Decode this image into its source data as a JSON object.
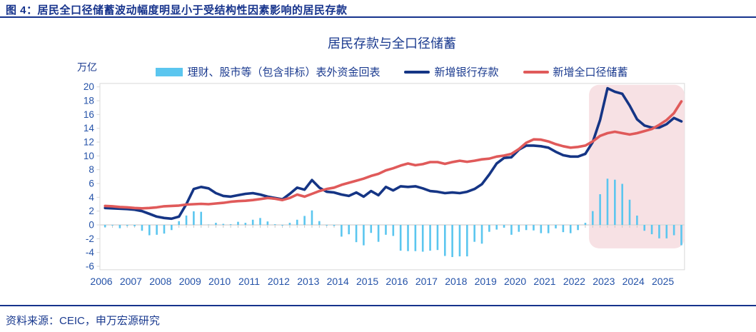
{
  "figure": {
    "title": "图 4：居民全口径储蓄波动幅度明显小于受结构性因素影响的居民存款",
    "source": "资料来源：CEIC，申万宏源研究"
  },
  "colors": {
    "title_blue": "#16338c",
    "axis_label_blue": "#2452a8",
    "axis_gray": "#d9d9d9",
    "tick_gray": "#c9c9c9",
    "bar_cyan": "#5bc6ef",
    "deposits_navy": "#153585",
    "savings_red": "#e05a5a",
    "highlight_pink": "#f7e1e4"
  },
  "chart_data": {
    "type": "bar+line combo",
    "title": "居民存款与全口径储蓄",
    "unit_label": "万亿",
    "frequency": "quarterly",
    "start": "2006Q1",
    "end": "2025Q3",
    "x_years": [
      2006,
      2007,
      2008,
      2009,
      2010,
      2011,
      2012,
      2013,
      2014,
      2015,
      2016,
      2017,
      2018,
      2019,
      2020,
      2021,
      2022,
      2023,
      2024,
      2025
    ],
    "yticks": [
      20,
      18,
      16,
      14,
      12,
      10,
      8,
      6,
      4,
      2,
      0,
      -2,
      -4,
      -6
    ],
    "ylim": [
      -6.5,
      20.5
    ],
    "grid": false,
    "legend_position": "top",
    "series": [
      {
        "name": "理财、股市等（包含非标）表外资金回表",
        "type": "bar",
        "color": "#5bc6ef",
        "values": [
          -0.34,
          -0.1,
          -0.48,
          -0.15,
          -0.2,
          -0.85,
          -1.5,
          -1.43,
          -1.26,
          -0.75,
          0.54,
          1.36,
          1.97,
          1.9,
          0.05,
          0.3,
          0.15,
          0.1,
          0.45,
          0.3,
          0.75,
          1.0,
          0.5,
          0.1,
          -0.1,
          0.3,
          0.75,
          1.3,
          2.1,
          0.55,
          -0.1,
          -0.15,
          -1.7,
          -1.36,
          -2.5,
          -2.96,
          -1.16,
          -2.45,
          -1.43,
          -1.6,
          -3.74,
          -3.8,
          -3.8,
          -3.88,
          -3.74,
          -3.64,
          -4.5,
          -4.66,
          -4.56,
          -4.56,
          -2.45,
          -2.72,
          -1.0,
          -0.68,
          -0.4,
          -1.43,
          -1.0,
          -0.75,
          -0.8,
          -1.2,
          -1.2,
          -0.5,
          -1.05,
          -1.2,
          -0.75,
          0.3,
          2.0,
          4.45,
          6.7,
          6.55,
          5.95,
          3.65,
          1.35,
          -0.85,
          -1.35,
          -1.95,
          -1.95,
          -1.5,
          -2.95
        ]
      },
      {
        "name": "新增银行存款",
        "type": "line",
        "color": "#153585",
        "values": [
          2.45,
          2.4,
          2.35,
          2.3,
          2.2,
          2.0,
          1.6,
          1.2,
          1.0,
          0.9,
          1.2,
          3.0,
          5.2,
          5.5,
          5.3,
          4.6,
          4.2,
          4.1,
          4.3,
          4.5,
          4.6,
          4.4,
          4.1,
          3.9,
          3.7,
          4.5,
          5.4,
          5.1,
          6.5,
          5.4,
          4.8,
          4.7,
          4.4,
          4.2,
          4.7,
          4.1,
          4.9,
          4.3,
          5.5,
          5.0,
          5.6,
          5.5,
          5.6,
          5.3,
          4.9,
          4.8,
          4.6,
          4.7,
          4.6,
          4.8,
          5.2,
          5.9,
          7.3,
          8.9,
          9.7,
          9.8,
          10.9,
          11.5,
          11.5,
          11.4,
          11.2,
          10.6,
          10.1,
          9.9,
          9.9,
          10.3,
          12.0,
          15.2,
          19.8,
          19.3,
          19.0,
          17.3,
          15.3,
          14.4,
          14.1,
          14.1,
          14.6,
          15.5,
          15.0
        ]
      },
      {
        "name": "新增全口径储蓄",
        "type": "line",
        "color": "#e05a5a",
        "values": [
          2.75,
          2.7,
          2.6,
          2.55,
          2.45,
          2.4,
          2.45,
          2.55,
          2.7,
          2.75,
          2.8,
          2.95,
          3.0,
          3.05,
          3.0,
          3.1,
          3.2,
          3.35,
          3.45,
          3.5,
          3.6,
          3.75,
          3.9,
          3.8,
          3.6,
          3.9,
          4.4,
          4.1,
          4.5,
          4.9,
          5.2,
          5.4,
          5.8,
          6.1,
          6.4,
          6.7,
          7.1,
          7.4,
          7.9,
          8.2,
          8.6,
          8.9,
          8.65,
          8.8,
          9.1,
          9.1,
          8.85,
          9.1,
          9.3,
          9.15,
          9.3,
          9.5,
          9.6,
          9.9,
          10.05,
          10.3,
          11.0,
          11.9,
          12.4,
          12.35,
          12.1,
          11.7,
          11.4,
          11.2,
          11.3,
          11.5,
          12.1,
          12.9,
          13.3,
          13.5,
          13.3,
          13.1,
          13.3,
          13.6,
          13.9,
          14.5,
          15.2,
          16.2,
          17.9
        ]
      }
    ],
    "highlight": {
      "from": "2022Q3",
      "to": "2025Q3",
      "t_start": 2022.5,
      "t_end": 2025.73,
      "v_bottom": -3.4,
      "v_top": 20.3,
      "color": "#f7e1e4"
    }
  }
}
